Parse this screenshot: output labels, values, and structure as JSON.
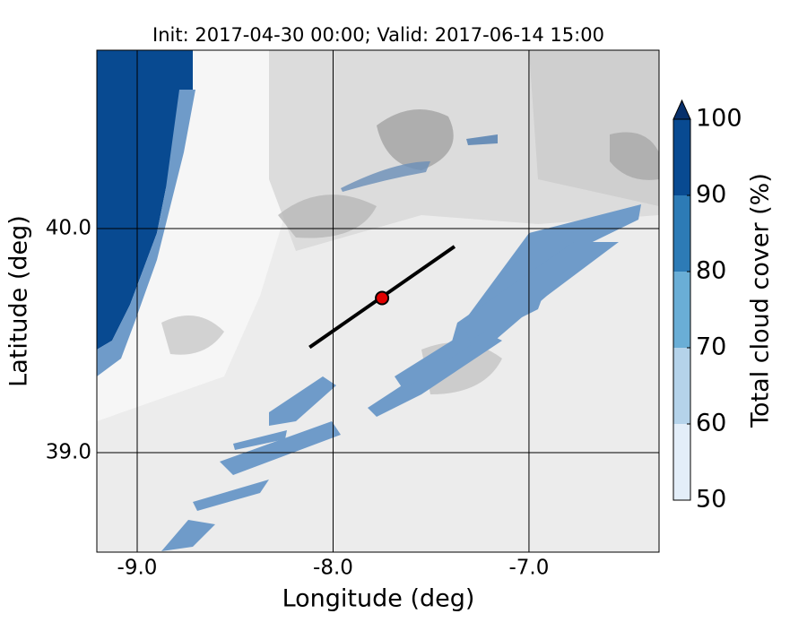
{
  "chart_data": {
    "type": "map",
    "title": "Init: 2017-04-30 00:00; Valid: 2017-06-14 15:00",
    "xlabel": "Longitude (deg)",
    "ylabel": "Latitude (deg)",
    "xlim": [
      -9.206,
      -6.336
    ],
    "ylim": [
      38.556,
      40.796
    ],
    "xticks": [
      {
        "value": -9,
        "label": "-9.0"
      },
      {
        "value": -8,
        "label": "-8.0"
      },
      {
        "value": -7,
        "label": "-7.0"
      }
    ],
    "yticks": [
      {
        "value": 39,
        "label": "39.0"
      },
      {
        "value": 40,
        "label": "40.0"
      }
    ],
    "grid": true,
    "colorbar": {
      "label": "Total cloud cover (%)",
      "clim": [
        50,
        100
      ],
      "ticks": [
        50,
        60,
        70,
        80,
        90,
        100
      ],
      "colors": [
        "#e3eef9",
        "#b5d3ea",
        "#6aaed6",
        "#2d7bb6",
        "#084a91"
      ],
      "extend_color": "#08306b"
    },
    "section": {
      "lon": [
        -8.12,
        -7.38
      ],
      "lat": [
        39.47,
        39.92
      ],
      "color": "#000000"
    },
    "point": {
      "lon": -7.75,
      "lat": 39.69,
      "color": "#e00000"
    }
  }
}
